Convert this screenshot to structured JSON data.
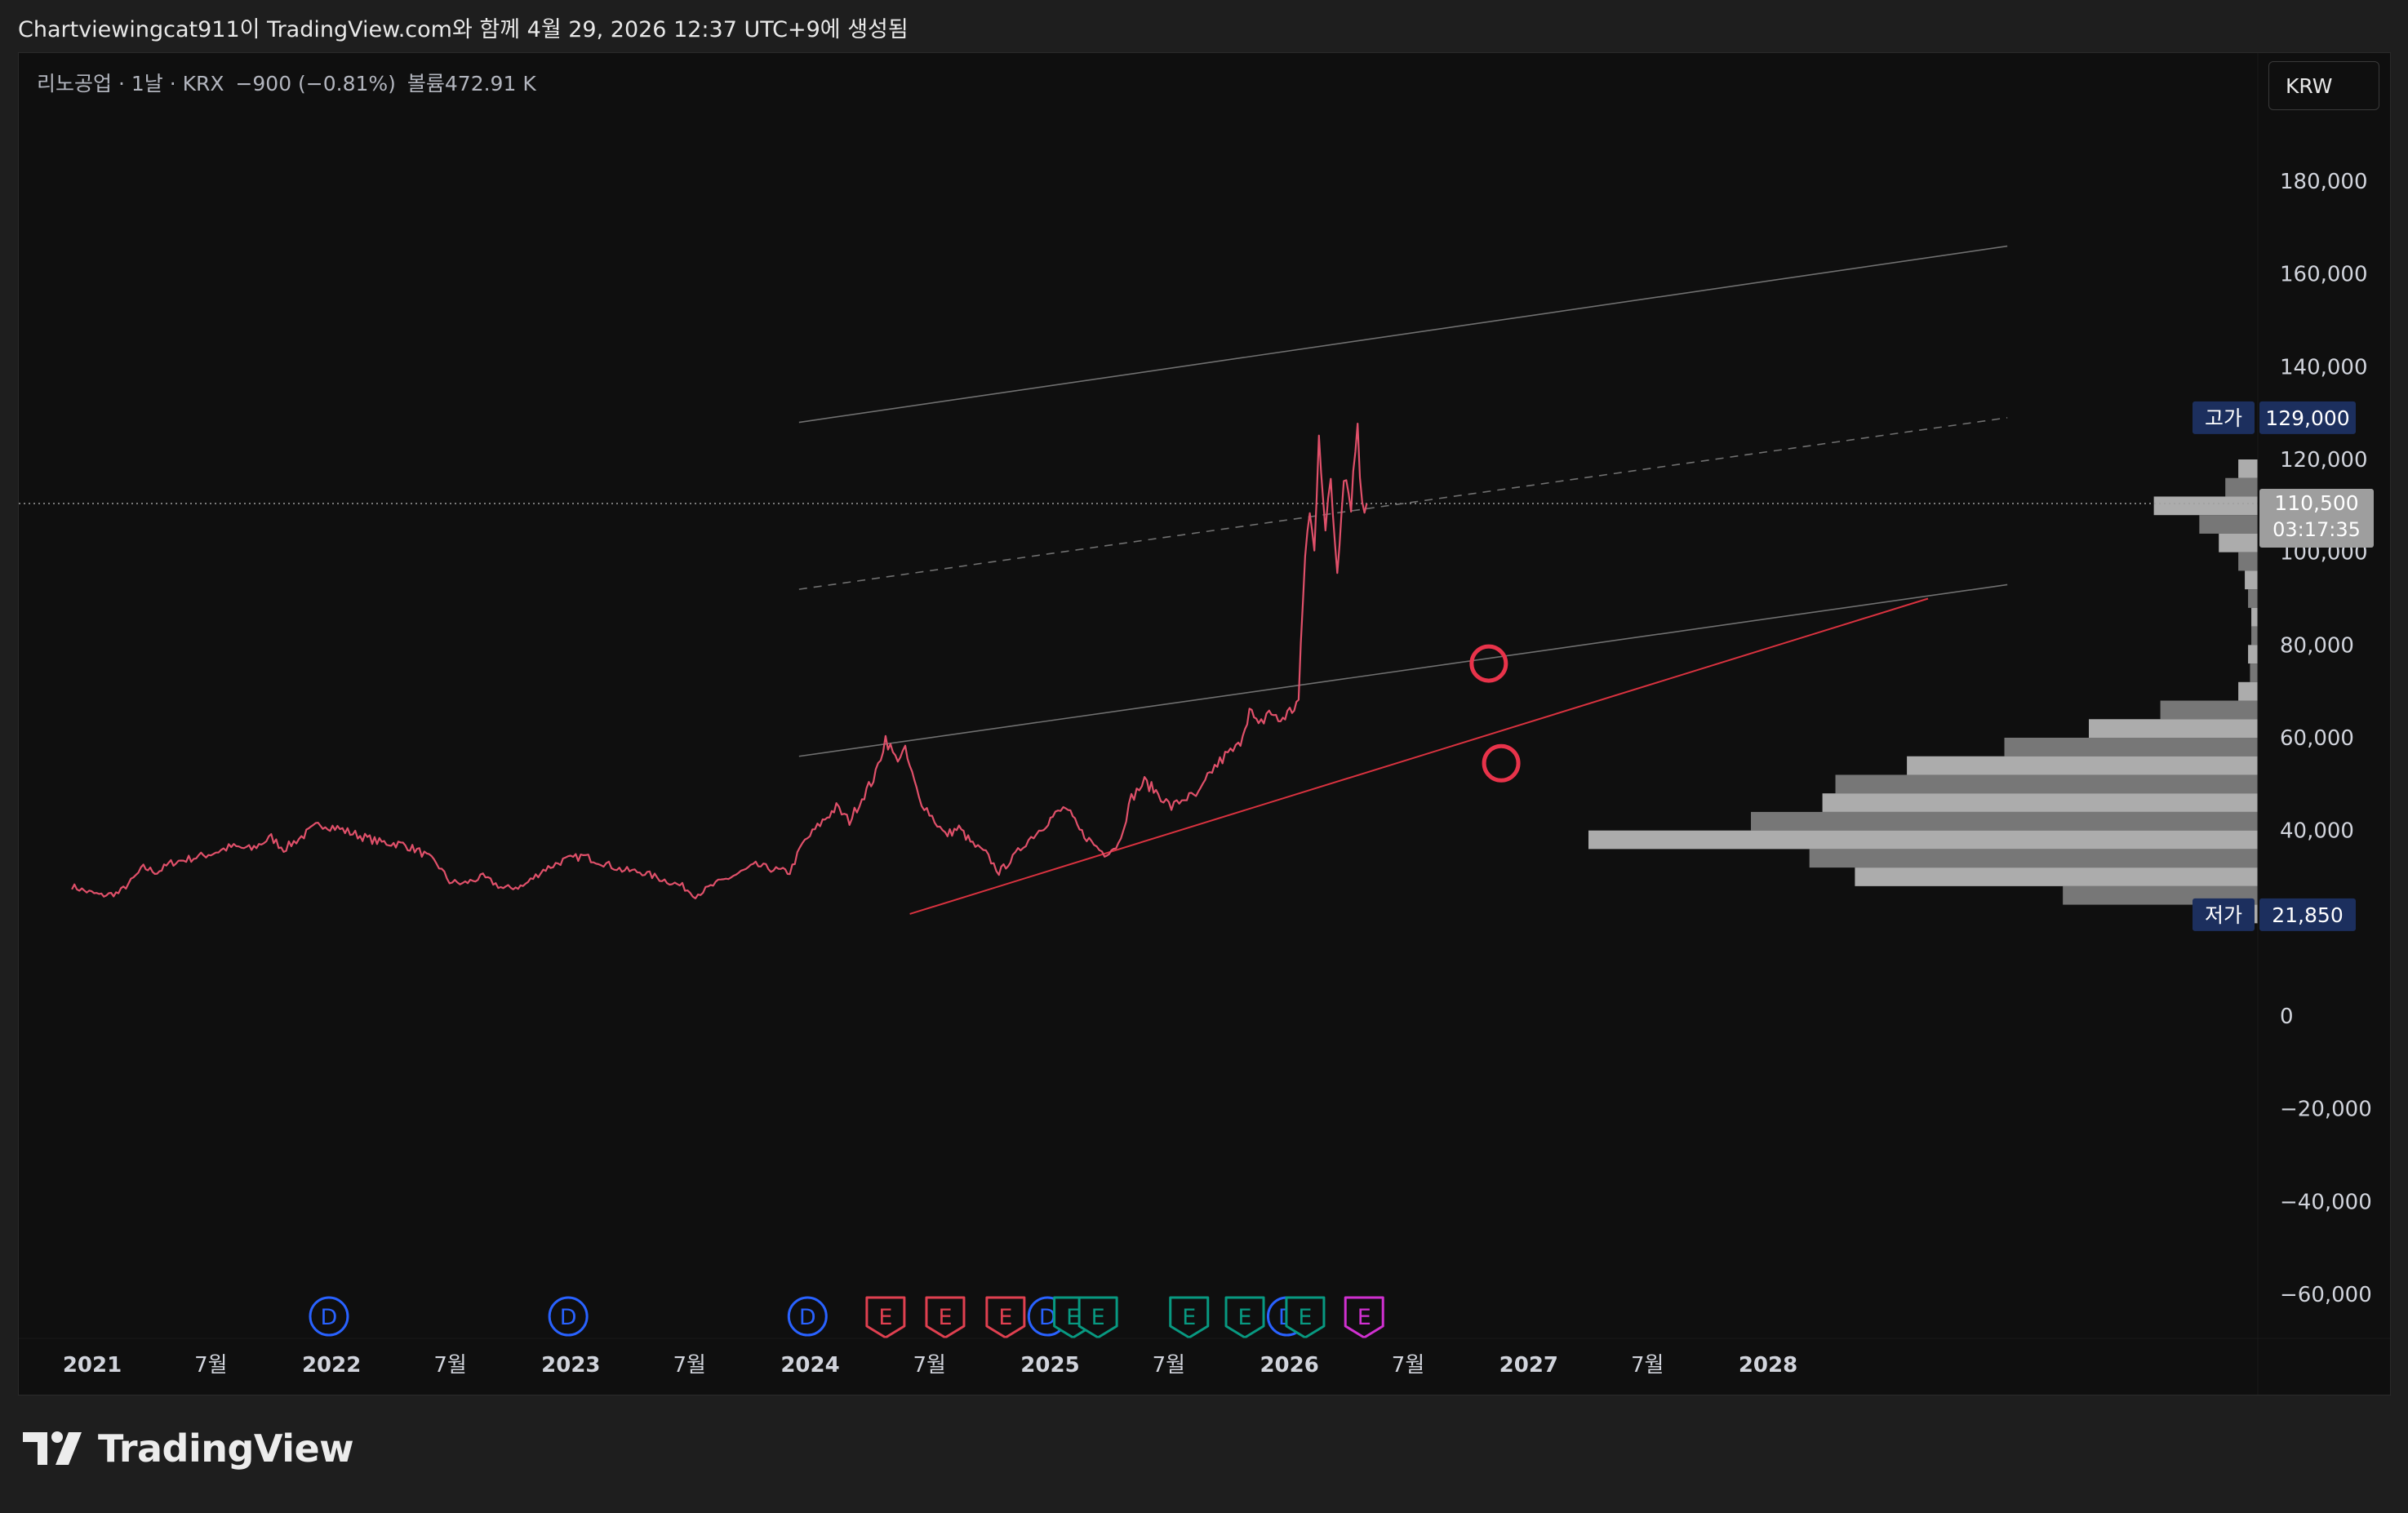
{
  "header": {
    "caption": "Chartviewingcat911이 TradingView.com와 함께 4월 29, 2026 12:37 UTC+9에 생성됨"
  },
  "legend": {
    "symbol": "리노공업 · 1날 · KRX",
    "change": "−900 (−0.81%)",
    "volume_label": "볼륨",
    "volume_value": "472.91 K"
  },
  "currency_button": "KRW",
  "brand": {
    "name": "TradingView"
  },
  "colors": {
    "background": "#0f0f0f",
    "price_line": "#e0506a",
    "trend_red": "#d8323f",
    "channel": "#707070",
    "marker_circle": "#e8334a",
    "high_low_badge": "#1c2f5e",
    "current_price_badge": "#9e9e9e",
    "dividend_icon": "#2962ff",
    "earnings_red": "#e04050",
    "earnings_green": "#089981",
    "earnings_magenta": "#d030d0"
  },
  "chart_data": {
    "type": "line",
    "title": "",
    "symbol": "리노공업",
    "interval": "1날",
    "exchange": "KRX",
    "currency": "KRW",
    "y_axis": {
      "ticks": [
        180000,
        160000,
        140000,
        120000,
        100000,
        80000,
        60000,
        40000,
        0,
        -20000,
        -40000,
        -60000
      ],
      "tick_labels": [
        "180,000",
        "160,000",
        "140,000",
        "120,000",
        "100,000",
        "80,000",
        "60,000",
        "40,000",
        "0",
        "−20,000",
        "−40,000",
        "−60,000"
      ],
      "range": [
        -70000,
        195000
      ]
    },
    "x_axis": {
      "range": [
        "2020-12-01",
        "2028-12-31"
      ],
      "ticks": [
        {
          "date": "2021-01-01",
          "label": "2021"
        },
        {
          "date": "2021-07-01",
          "label": "7월"
        },
        {
          "date": "2022-01-01",
          "label": "2022"
        },
        {
          "date": "2022-07-01",
          "label": "7월"
        },
        {
          "date": "2023-01-01",
          "label": "2023"
        },
        {
          "date": "2023-07-01",
          "label": "7월"
        },
        {
          "date": "2024-01-01",
          "label": "2024"
        },
        {
          "date": "2024-07-01",
          "label": "7월"
        },
        {
          "date": "2025-01-01",
          "label": "2025"
        },
        {
          "date": "2025-07-01",
          "label": "7월"
        },
        {
          "date": "2026-01-01",
          "label": "2026"
        },
        {
          "date": "2026-07-01",
          "label": "7월"
        },
        {
          "date": "2027-01-01",
          "label": "2027"
        },
        {
          "date": "2027-07-01",
          "label": "7월"
        },
        {
          "date": "2028-01-01",
          "label": "2028"
        }
      ]
    },
    "series": [
      {
        "points": [
          [
            "2020-12-01",
            28000
          ],
          [
            "2020-12-20",
            27000
          ],
          [
            "2021-01-15",
            26000
          ],
          [
            "2021-02-10",
            26500
          ],
          [
            "2021-03-01",
            29000
          ],
          [
            "2021-03-20",
            32000
          ],
          [
            "2021-04-10",
            31000
          ],
          [
            "2021-05-01",
            33000
          ],
          [
            "2021-06-01",
            34000
          ],
          [
            "2021-07-01",
            35000
          ],
          [
            "2021-08-01",
            36500
          ],
          [
            "2021-09-01",
            36000
          ],
          [
            "2021-10-01",
            38500
          ],
          [
            "2021-10-20",
            36000
          ],
          [
            "2021-11-20",
            39000
          ],
          [
            "2021-12-15",
            41500
          ],
          [
            "2022-01-10",
            40500
          ],
          [
            "2022-02-10",
            39000
          ],
          [
            "2022-03-15",
            37500
          ],
          [
            "2022-04-20",
            37000
          ],
          [
            "2022-05-15",
            35500
          ],
          [
            "2022-06-10",
            33000
          ],
          [
            "2022-06-30",
            29000
          ],
          [
            "2022-07-20",
            28500
          ],
          [
            "2022-08-20",
            30000
          ],
          [
            "2022-09-20",
            27500
          ],
          [
            "2022-10-20",
            28000
          ],
          [
            "2022-11-20",
            31500
          ],
          [
            "2022-12-20",
            33500
          ],
          [
            "2023-01-20",
            34500
          ],
          [
            "2023-02-20",
            33000
          ],
          [
            "2023-03-20",
            31500
          ],
          [
            "2023-04-20",
            31000
          ],
          [
            "2023-05-20",
            29500
          ],
          [
            "2023-06-20",
            28000
          ],
          [
            "2023-07-10",
            26000
          ],
          [
            "2023-08-10",
            28500
          ],
          [
            "2023-09-10",
            30500
          ],
          [
            "2023-10-10",
            32500
          ],
          [
            "2023-11-10",
            31500
          ],
          [
            "2023-12-01",
            31000
          ],
          [
            "2023-12-20",
            37000
          ],
          [
            "2024-01-20",
            42000
          ],
          [
            "2024-02-10",
            45000
          ],
          [
            "2024-03-01",
            42000
          ],
          [
            "2024-03-20",
            47000
          ],
          [
            "2024-04-10",
            52000
          ],
          [
            "2024-04-25",
            60000
          ],
          [
            "2024-05-10",
            55500
          ],
          [
            "2024-05-25",
            57000
          ],
          [
            "2024-06-15",
            47000
          ],
          [
            "2024-07-05",
            43000
          ],
          [
            "2024-07-25",
            39000
          ],
          [
            "2024-08-15",
            40500
          ],
          [
            "2024-09-05",
            37000
          ],
          [
            "2024-09-25",
            35000
          ],
          [
            "2024-10-15",
            31000
          ],
          [
            "2024-11-05",
            34000
          ],
          [
            "2024-11-25",
            37500
          ],
          [
            "2024-12-15",
            40000
          ],
          [
            "2025-01-05",
            43000
          ],
          [
            "2025-01-25",
            45000
          ],
          [
            "2025-02-15",
            40000
          ],
          [
            "2025-03-05",
            37500
          ],
          [
            "2025-03-25",
            35000
          ],
          [
            "2025-04-15",
            37000
          ],
          [
            "2025-05-05",
            47000
          ],
          [
            "2025-05-25",
            50500
          ],
          [
            "2025-06-15",
            48000
          ],
          [
            "2025-07-05",
            45000
          ],
          [
            "2025-07-25",
            47000
          ],
          [
            "2025-08-15",
            47500
          ],
          [
            "2025-09-05",
            53000
          ],
          [
            "2025-09-25",
            56000
          ],
          [
            "2025-10-15",
            58000
          ],
          [
            "2025-11-01",
            66000
          ],
          [
            "2025-11-15",
            62000
          ],
          [
            "2025-12-01",
            66000
          ],
          [
            "2025-12-15",
            63500
          ],
          [
            "2026-01-05",
            66000
          ],
          [
            "2026-01-15",
            68000
          ],
          [
            "2026-01-25",
            100000
          ],
          [
            "2026-02-01",
            108000
          ],
          [
            "2026-02-08",
            100000
          ],
          [
            "2026-02-15",
            127000
          ],
          [
            "2026-02-25",
            104000
          ],
          [
            "2026-03-05",
            115000
          ],
          [
            "2026-03-15",
            96000
          ],
          [
            "2026-03-25",
            118000
          ],
          [
            "2026-04-05",
            111000
          ],
          [
            "2026-04-15",
            128000
          ],
          [
            "2026-04-22",
            109000
          ],
          [
            "2026-04-29",
            110500
          ]
        ]
      }
    ],
    "trendlines": [
      {
        "style": "solid",
        "color": "channel",
        "from": [
          "2023-12-15",
          128000
        ],
        "to": [
          "2028-12-31",
          166000
        ]
      },
      {
        "style": "dashed",
        "color": "channel",
        "from": [
          "2023-12-15",
          92000
        ],
        "to": [
          "2028-12-31",
          129000
        ]
      },
      {
        "style": "solid",
        "color": "channel",
        "from": [
          "2023-12-15",
          56000
        ],
        "to": [
          "2028-12-31",
          93000
        ]
      },
      {
        "style": "solid",
        "color": "trend_red",
        "from": [
          "2024-06-01",
          22000
        ],
        "to": [
          "2028-09-01",
          90000
        ]
      }
    ],
    "markers": [
      {
        "type": "circle",
        "date": "2026-11-01",
        "value": 76000
      },
      {
        "type": "circle",
        "date": "2026-11-20",
        "value": 54500
      }
    ],
    "price_labels": [
      {
        "label": "고가",
        "value": "129,000",
        "y": 129000,
        "kind": "high"
      },
      {
        "label": "",
        "value": "110,500",
        "sub": "03:17:35",
        "y": 110500,
        "kind": "current"
      },
      {
        "label": "저가",
        "value": "21,850",
        "y": 21850,
        "kind": "low"
      }
    ],
    "volume_profile": {
      "bins": [
        [
          118000,
          0.3
        ],
        [
          114000,
          0.5
        ],
        [
          110000,
          1.6
        ],
        [
          106000,
          0.9
        ],
        [
          102000,
          0.6
        ],
        [
          98000,
          0.3
        ],
        [
          94000,
          0.2
        ],
        [
          90000,
          0.15
        ],
        [
          86000,
          0.1
        ],
        [
          82000,
          0.1
        ],
        [
          78000,
          0.15
        ],
        [
          74000,
          0.12
        ],
        [
          70000,
          0.3
        ],
        [
          66000,
          1.5
        ],
        [
          62000,
          2.6
        ],
        [
          58000,
          3.9
        ],
        [
          54000,
          5.4
        ],
        [
          50000,
          6.5
        ],
        [
          46000,
          6.7
        ],
        [
          42000,
          7.8
        ],
        [
          38000,
          10.3
        ],
        [
          34000,
          6.9
        ],
        [
          30000,
          6.2
        ],
        [
          26000,
          3.0
        ],
        [
          22000,
          0.5
        ]
      ]
    },
    "events": [
      {
        "type": "D",
        "date": "2021-12-28",
        "color": "dividend_icon"
      },
      {
        "type": "D",
        "date": "2022-12-28",
        "color": "dividend_icon"
      },
      {
        "type": "D",
        "date": "2023-12-28",
        "color": "dividend_icon"
      },
      {
        "type": "E",
        "date": "2024-04-25",
        "color": "earnings_red"
      },
      {
        "type": "E",
        "date": "2024-07-25",
        "color": "earnings_red"
      },
      {
        "type": "E",
        "date": "2024-10-25",
        "color": "earnings_red"
      },
      {
        "type": "D",
        "date": "2024-12-28",
        "color": "dividend_icon"
      },
      {
        "type": "E",
        "date": "2025-02-05",
        "color": "earnings_green"
      },
      {
        "type": "E",
        "date": "2025-03-15",
        "color": "earnings_green"
      },
      {
        "type": "E",
        "date": "2025-08-01",
        "color": "earnings_green"
      },
      {
        "type": "E",
        "date": "2025-10-25",
        "color": "earnings_green"
      },
      {
        "type": "D",
        "date": "2025-12-28",
        "color": "dividend_icon"
      },
      {
        "type": "E",
        "date": "2026-01-25",
        "color": "earnings_green"
      },
      {
        "type": "E",
        "date": "2026-04-25",
        "color": "earnings_magenta"
      }
    ]
  }
}
